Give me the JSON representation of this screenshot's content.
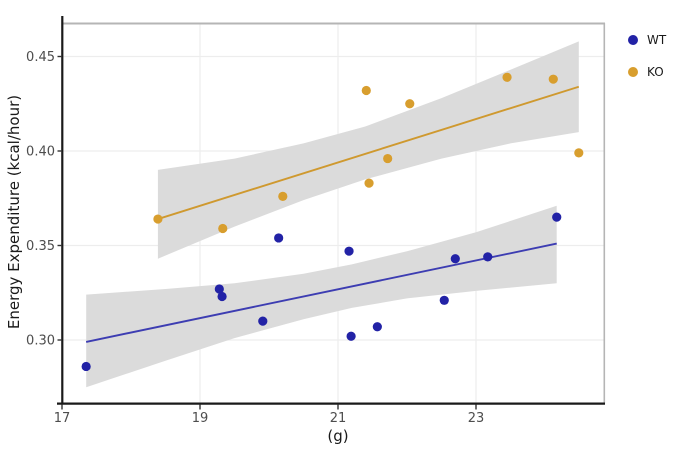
{
  "chart_data": {
    "type": "scatter",
    "title": "",
    "xlabel": "(g)",
    "ylabel": "Energy Expenditure (kcal/hour)",
    "x_ticks": [
      "17",
      "19",
      "21",
      "23"
    ],
    "x_tick_values": [
      17,
      19,
      21,
      23
    ],
    "y_ticks": [
      "0.30",
      "0.35",
      "0.40",
      "0.45"
    ],
    "y_tick_values": [
      0.3,
      0.35,
      0.4,
      0.45
    ],
    "xlim": [
      17.0,
      24.86
    ],
    "ylim": [
      0.267,
      0.467
    ],
    "grid": true,
    "legend_position": "right",
    "panel": {
      "background": "#FFFFFF",
      "grid_color": "#EDEDED",
      "border_color": "#B5B5B5",
      "axis_color": "#1A1A1A",
      "tick_color": "#333333",
      "tick_label_color": "#4D4D4D",
      "band_color": "#DBDBDB"
    },
    "series": [
      {
        "name": "WT",
        "point_color": "#2222A6",
        "line_color": "#3D3DB2",
        "points": [
          [
            17.35,
            0.286
          ],
          [
            19.28,
            0.327
          ],
          [
            19.32,
            0.323
          ],
          [
            19.91,
            0.31
          ],
          [
            20.14,
            0.354
          ],
          [
            21.16,
            0.347
          ],
          [
            21.19,
            0.302
          ],
          [
            21.57,
            0.307
          ],
          [
            22.54,
            0.321
          ],
          [
            22.7,
            0.343
          ],
          [
            23.17,
            0.344
          ],
          [
            24.17,
            0.365
          ]
        ],
        "regression_line": {
          "x": [
            17.35,
            24.17
          ],
          "y": [
            0.299,
            0.351
          ]
        },
        "ci_band": {
          "x": [
            17.35,
            18.5,
            19.5,
            20.5,
            21.2,
            22.0,
            23.0,
            24.17
          ],
          "upper": [
            0.324,
            0.327,
            0.33,
            0.335,
            0.34,
            0.347,
            0.357,
            0.371
          ],
          "lower": [
            0.275,
            0.289,
            0.301,
            0.311,
            0.317,
            0.322,
            0.326,
            0.33
          ]
        }
      },
      {
        "name": "KO",
        "point_color": "#D89E2E",
        "line_color": "#CF992F",
        "points": [
          [
            18.39,
            0.364
          ],
          [
            19.33,
            0.359
          ],
          [
            20.2,
            0.376
          ],
          [
            21.41,
            0.432
          ],
          [
            21.45,
            0.383
          ],
          [
            21.72,
            0.396
          ],
          [
            22.04,
            0.425
          ],
          [
            23.45,
            0.439
          ],
          [
            24.12,
            0.438
          ],
          [
            24.49,
            0.399
          ]
        ],
        "regression_line": {
          "x": [
            18.39,
            24.49
          ],
          "y": [
            0.364,
            0.434
          ]
        },
        "ci_band": {
          "x": [
            18.39,
            19.5,
            20.5,
            21.4,
            22.5,
            23.5,
            24.49
          ],
          "upper": [
            0.39,
            0.396,
            0.404,
            0.413,
            0.428,
            0.443,
            0.458
          ],
          "lower": [
            0.343,
            0.36,
            0.374,
            0.385,
            0.396,
            0.404,
            0.41
          ]
        }
      }
    ]
  }
}
